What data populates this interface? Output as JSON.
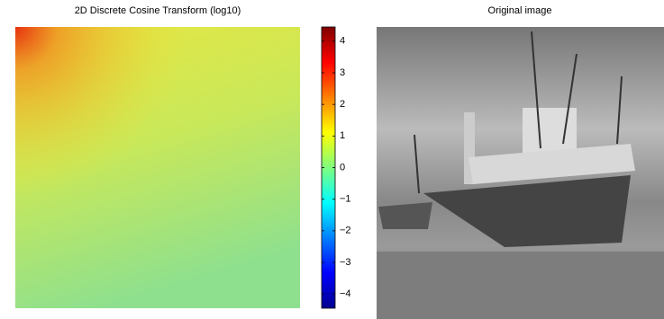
{
  "chart_data": [
    {
      "type": "heatmap",
      "title": "2D Discrete Cosine Transform (log10)",
      "colormap": "jet",
      "clim": [
        -4.45,
        4.45
      ],
      "cticks": [
        {
          "value": -4,
          "label": "−4"
        },
        {
          "value": -3,
          "label": "−3"
        },
        {
          "value": -2,
          "label": "−2"
        },
        {
          "value": -1,
          "label": "−1"
        },
        0,
        1,
        2,
        3,
        4
      ]
    },
    {
      "type": "image",
      "title": "Original image"
    }
  ]
}
